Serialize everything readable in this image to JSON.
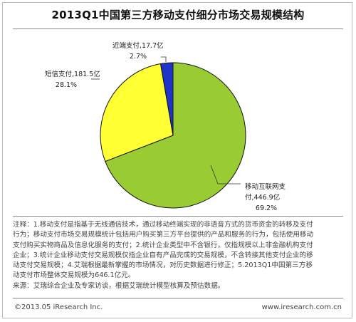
{
  "title": "2013Q1中国第三方移动支付细分市场交易规模结构",
  "chart_data": {
    "type": "pie",
    "title": "2013Q1中国第三方移动支付细分市场交易规模结构",
    "unit": "亿元",
    "start_angle_deg": 0,
    "direction": "clockwise",
    "slices": [
      {
        "name": "移动互联网支付",
        "value": 446.9,
        "percent": "69.2%",
        "value_label": "446.9亿",
        "color": "#99cc33"
      },
      {
        "name": "短信支付",
        "value": 181.5,
        "percent": "28.1%",
        "value_label": "181.5亿",
        "color": "#ffff33"
      },
      {
        "name": "近端支付",
        "value": 17.7,
        "percent": "2.7%",
        "value_label": "17.7亿",
        "color": "#1f35c9"
      }
    ]
  },
  "labels": {
    "mobile_line1": "移动互联网支",
    "mobile_line2": "付,446.9亿",
    "mobile_pct": "69.2%",
    "sms_line1": "短信支付,181.5亿",
    "sms_pct": "28.1%",
    "nfc_line1": "近端支付,17.7亿",
    "nfc_pct": "2.7%"
  },
  "notes": {
    "line1": "注释：1.移动支付是指基于无线通信技术，通过移动终端实现的非语音方式的货币资金的转移及支付",
    "line2": "行为；移动支付市场交易规模统计包括用户购买第三方平台提供的产品和服务的行为，包括使用移动",
    "line3": "支付购买实物商品及信息化服务的支付；2.统计企业类型中不含银行，仅指规模以上非金融机构支付",
    "line4": "企业；3.统计企业移动支付交易规模仅指企业自有产品完成的交易规模，不含转接其他支付企业的移",
    "line5": "动支付交易规模；4.艾瑞根据最新掌握的市场情况，对历史数据进行修正；5.2013Q1中国第三方移",
    "line6": "动支付市场整体交易规模为646.1亿元。",
    "source": "来源：艾瑞综合企业及专家访谈，根据艾瑞统计模型核算及预估数据。"
  },
  "footer": {
    "copyright": "©2013.05 iResearch Inc.",
    "website": "www.iresearch.com.cn"
  }
}
